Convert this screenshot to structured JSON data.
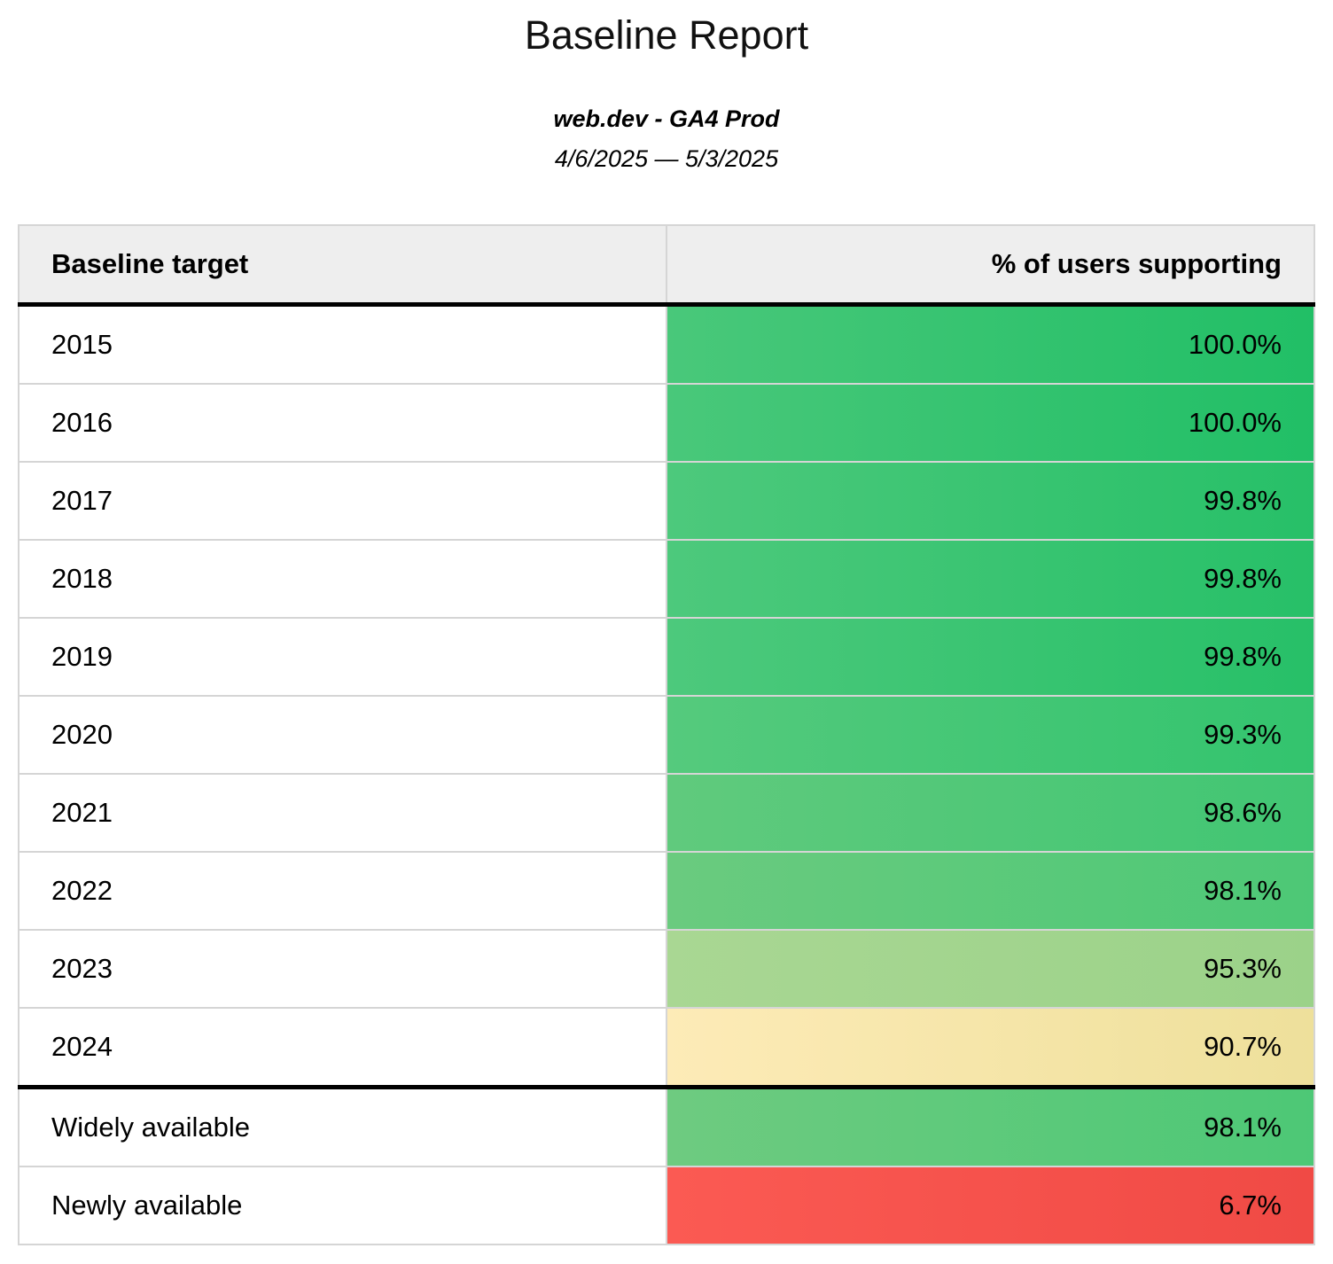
{
  "header": {
    "title": "Baseline Report",
    "subtitle": "web.dev - GA4 Prod",
    "date_range": "4/6/2025 — 5/3/2025"
  },
  "colors": {
    "page_background": "#ffffff",
    "header_cell_background": "#eeeeee",
    "grid_border": "#d5d5d5",
    "heavy_border": "#000000",
    "text": "#000000"
  },
  "table": {
    "columns": [
      {
        "label": "Baseline target",
        "align": "left"
      },
      {
        "label": "% of users supporting",
        "align": "right"
      }
    ],
    "rows": [
      {
        "target": "2015",
        "value": "100.0%",
        "color_start": "#49c87a",
        "color_end": "#21bf66",
        "divider_above": false
      },
      {
        "target": "2016",
        "value": "100.0%",
        "color_start": "#49c87a",
        "color_end": "#21bf66",
        "divider_above": false
      },
      {
        "target": "2017",
        "value": "99.8%",
        "color_start": "#4dc97c",
        "color_end": "#27c068",
        "divider_above": false
      },
      {
        "target": "2018",
        "value": "99.8%",
        "color_start": "#4dc97c",
        "color_end": "#27c068",
        "divider_above": false
      },
      {
        "target": "2019",
        "value": "99.8%",
        "color_start": "#4dc97c",
        "color_end": "#27c068",
        "divider_above": false
      },
      {
        "target": "2020",
        "value": "99.3%",
        "color_start": "#55ca7d",
        "color_end": "#33c46e",
        "divider_above": false
      },
      {
        "target": "2021",
        "value": "98.6%",
        "color_start": "#60ca7d",
        "color_end": "#41c673",
        "divider_above": false
      },
      {
        "target": "2022",
        "value": "98.1%",
        "color_start": "#6acb7f",
        "color_end": "#4dc876",
        "divider_above": false
      },
      {
        "target": "2023",
        "value": "95.3%",
        "color_start": "#a9d793",
        "color_end": "#9bd289",
        "divider_above": false
      },
      {
        "target": "2024",
        "value": "90.7%",
        "color_start": "#fdebb7",
        "color_end": "#eee09b",
        "divider_above": false
      },
      {
        "target": "Widely available",
        "value": "98.1%",
        "color_start": "#6ecb80",
        "color_end": "#4dc876",
        "divider_above": true
      },
      {
        "target": "Newly available",
        "value": "6.7%",
        "color_start": "#fb5a53",
        "color_end": "#f04a45",
        "divider_above": false
      }
    ]
  },
  "chart_data": {
    "type": "table",
    "title": "Baseline Report",
    "subtitle": "web.dev - GA4 Prod",
    "date_range": "4/6/2025 — 5/3/2025",
    "columns": [
      "Baseline target",
      "% of users supporting"
    ],
    "categories": [
      "2015",
      "2016",
      "2017",
      "2018",
      "2019",
      "2020",
      "2021",
      "2022",
      "2023",
      "2024",
      "Widely available",
      "Newly available"
    ],
    "values": [
      100.0,
      100.0,
      99.8,
      99.8,
      99.8,
      99.3,
      98.6,
      98.1,
      95.3,
      90.7,
      98.1,
      6.7
    ],
    "value_format": "percent",
    "color_scale": "red-yellow-green heatmap applied to value cells",
    "layout": "two-column table, value column right-aligned, heavy black rule under header and above summary rows"
  }
}
